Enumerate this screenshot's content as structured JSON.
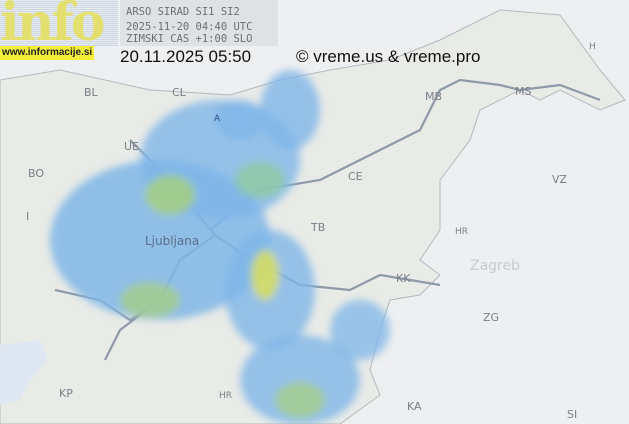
{
  "header": {
    "logo_text": "info",
    "logo_url": "www.informacije.si",
    "radar_source": "ARSO SIRAD SI1 SI2",
    "radar_time_utc": "2025-11-20 04:40 UTC",
    "time_zone_note": "ZIMSKI CAS +1:00 SLO",
    "local_datetime": "20.11.2025 05:50",
    "copyright": "© vreme.us & vreme.pro"
  },
  "map": {
    "labels": [
      "BL",
      "CL",
      "UE",
      "BO",
      "I",
      "Ljubljana",
      "CE",
      "TB",
      "HR",
      "KK",
      "Zagreb",
      "ZG",
      "HR",
      "KP",
      "KA",
      "SI",
      "VZ",
      "MB",
      "MS",
      "H",
      "A"
    ],
    "colors": {
      "land": "#e9ebe7",
      "outside": "#eeeff0",
      "sea": "#dfe8f2",
      "highway": "#8e9aa8",
      "radar_light": "#7fb6e8",
      "radar_mid": "#6fc3c0",
      "radar_high": "#d9df5a"
    }
  }
}
